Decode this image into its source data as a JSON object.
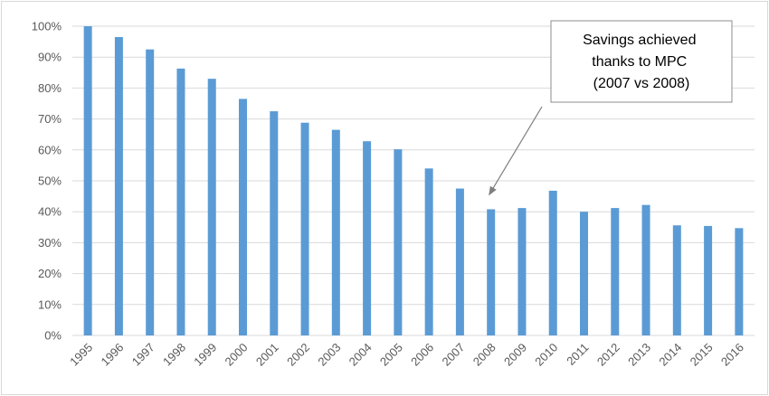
{
  "chart_data": {
    "type": "bar",
    "categories": [
      "1995",
      "1996",
      "1997",
      "1998",
      "1999",
      "2000",
      "2001",
      "2002",
      "2003",
      "2004",
      "2005",
      "2006",
      "2007",
      "2008",
      "2009",
      "2010",
      "2011",
      "2012",
      "2013",
      "2014",
      "2015",
      "2016"
    ],
    "values": [
      100,
      96.5,
      92.5,
      86.3,
      83,
      76.5,
      72.5,
      68.8,
      66.5,
      62.8,
      60.2,
      54,
      47.5,
      40.8,
      41.2,
      46.8,
      40,
      41.2,
      42.2,
      35.6,
      35.4,
      34.7
    ],
    "ylim": [
      0,
      100
    ],
    "y_ticks": [
      "0%",
      "10%",
      "20%",
      "30%",
      "40%",
      "50%",
      "60%",
      "70%",
      "80%",
      "90%",
      "100%"
    ],
    "grid": true,
    "color": "#5b9bd5",
    "annotation": {
      "lines": [
        "Savings achieved",
        "thanks to MPC",
        "(2007 vs 2008)"
      ],
      "points_to": "2008"
    }
  }
}
